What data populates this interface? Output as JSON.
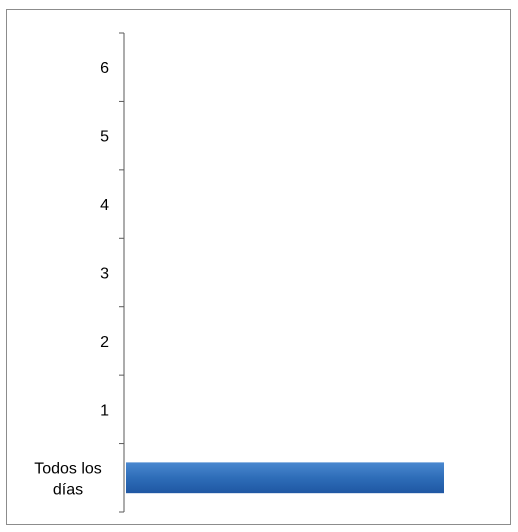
{
  "chart_data": {
    "type": "bar",
    "orientation": "horizontal",
    "categories": [
      "Todos los días",
      "1",
      "2",
      "3",
      "4",
      "5",
      "6"
    ],
    "category_label_lines": [
      [
        "Todos los",
        "días"
      ],
      [
        "1"
      ],
      [
        "2"
      ],
      [
        "3"
      ],
      [
        "4"
      ],
      [
        "5"
      ],
      [
        "6"
      ]
    ],
    "values": [
      1,
      0,
      0,
      0,
      0,
      0,
      0
    ],
    "xlim": [
      0,
      1
    ],
    "value_axis_visible": false,
    "grid": false,
    "legend": "none",
    "bar_color": "#2e6db8",
    "bar_color_top": "#4a88d0",
    "bar_color_bottom": "#1f57a3"
  }
}
